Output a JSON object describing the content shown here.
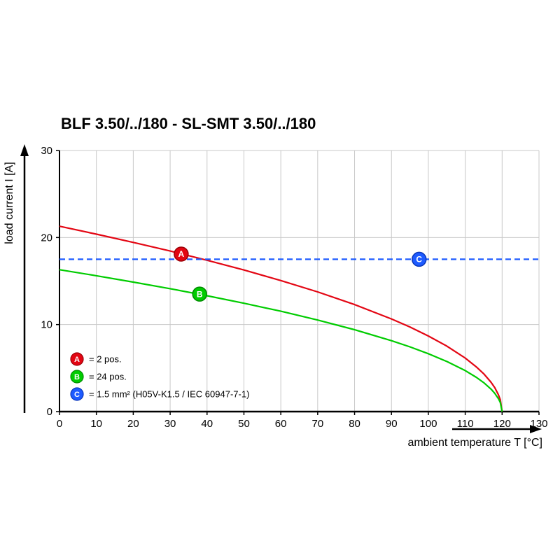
{
  "title": "BLF 3.50/../180 - SL-SMT 3.50/../180",
  "chart_data": {
    "type": "line",
    "title": "BLF 3.50/../180 - SL-SMT 3.50/../180",
    "xlabel": "ambient temperature T [°C]",
    "ylabel": "load current I [A]",
    "xlim": [
      0,
      130
    ],
    "ylim": [
      0,
      30
    ],
    "x_ticks": [
      0,
      10,
      20,
      30,
      40,
      50,
      60,
      70,
      80,
      90,
      100,
      110,
      120,
      130
    ],
    "y_ticks": [
      0,
      10,
      20,
      30
    ],
    "grid": true,
    "legend_position": "bottom-left-inside",
    "series": [
      {
        "name": "A",
        "label": "= 2 pos.",
        "color": "#e30613",
        "marker_stroke": "#990006",
        "style": "solid",
        "points": [
          [
            0,
            21.3
          ],
          [
            10,
            20.39
          ],
          [
            20,
            19.44
          ],
          [
            30,
            18.45
          ],
          [
            40,
            17.39
          ],
          [
            50,
            16.27
          ],
          [
            60,
            15.06
          ],
          [
            70,
            13.75
          ],
          [
            80,
            12.3
          ],
          [
            90,
            10.65
          ],
          [
            95,
            9.72
          ],
          [
            100,
            8.69
          ],
          [
            105,
            7.53
          ],
          [
            110,
            6.15
          ],
          [
            113,
            5.14
          ],
          [
            115,
            4.35
          ],
          [
            117,
            3.37
          ],
          [
            118,
            2.75
          ],
          [
            119,
            1.94
          ],
          [
            119.5,
            1.37
          ],
          [
            120,
            0
          ]
        ],
        "marker": {
          "x": 33,
          "y": 18.1
        }
      },
      {
        "name": "B",
        "label": "= 24 pos.",
        "color": "#00cc00",
        "marker_stroke": "#008a00",
        "style": "solid",
        "points": [
          [
            0,
            16.3
          ],
          [
            10,
            15.61
          ],
          [
            20,
            14.88
          ],
          [
            30,
            14.12
          ],
          [
            40,
            13.31
          ],
          [
            50,
            12.45
          ],
          [
            60,
            11.53
          ],
          [
            70,
            10.52
          ],
          [
            80,
            9.41
          ],
          [
            90,
            8.15
          ],
          [
            95,
            7.44
          ],
          [
            100,
            6.65
          ],
          [
            105,
            5.76
          ],
          [
            110,
            4.71
          ],
          [
            113,
            3.94
          ],
          [
            115,
            3.33
          ],
          [
            117,
            2.58
          ],
          [
            118,
            2.1
          ],
          [
            119,
            1.49
          ],
          [
            119.5,
            1.05
          ],
          [
            120,
            0
          ]
        ],
        "marker": {
          "x": 38,
          "y": 13.5
        }
      },
      {
        "name": "C",
        "label": "= 1.5 mm² (H05V-K1.5 / IEC 60947-7-1)",
        "color": "#1e5bff",
        "marker_stroke": "#0a36b8",
        "style": "dashed",
        "points": [
          [
            0,
            17.5
          ],
          [
            130,
            17.5
          ]
        ],
        "marker": {
          "x": 97.5,
          "y": 17.5
        }
      }
    ]
  }
}
